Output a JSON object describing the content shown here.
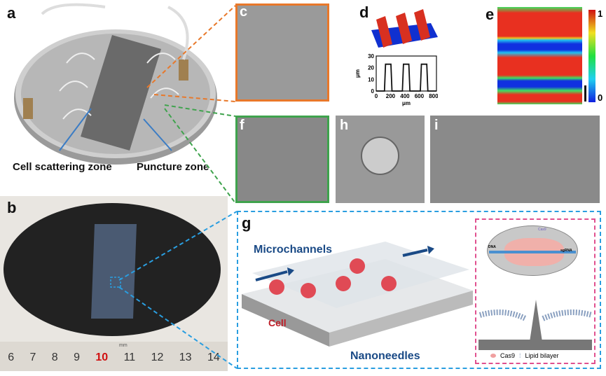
{
  "panels": {
    "a": {
      "label": "a",
      "annotations": [
        "Cell scattering zone",
        "Puncture zone"
      ]
    },
    "b": {
      "label": "b",
      "ruler_numbers": [
        "6",
        "7",
        "8",
        "9",
        "10",
        "11",
        "12",
        "13",
        "14"
      ],
      "ruler_unit": "mm",
      "highlight_number": "10"
    },
    "c": {
      "label": "c"
    },
    "d": {
      "label": "d"
    },
    "e": {
      "label": "e",
      "colorbar_max": "1",
      "colorbar_min": "0"
    },
    "f": {
      "label": "f"
    },
    "h": {
      "label": "h"
    },
    "i": {
      "label": "i"
    },
    "g": {
      "label": "g",
      "microchannels": "Microchannels",
      "cell": "Cell",
      "nanoneedles": "Nanoneedles",
      "inset": {
        "dna": "DNA",
        "cas9_top": "Cas9",
        "sgrna": "sgRNA",
        "legend_cas9": "Cas9",
        "legend_lipid": "Lipid bilayer"
      }
    }
  },
  "colors": {
    "orange": "#e8782a",
    "green": "#3fa34d",
    "blue": "#2a9ee0",
    "pink": "#e0508f",
    "navy": "#1a4a86"
  },
  "chart_data": {
    "type": "line",
    "xlabel": "μm",
    "ylabel": "μm",
    "xlim": [
      0,
      840
    ],
    "ylim": [
      0,
      30
    ],
    "xticks": [
      "0",
      "200",
      "400",
      "600",
      "800"
    ],
    "yticks": [
      "0",
      "10",
      "20",
      "30"
    ],
    "series": [
      {
        "x": [
          0,
          115,
          130,
          205,
          220,
          365,
          380,
          455,
          470,
          615,
          630,
          705,
          720,
          840
        ],
        "y": [
          0,
          0,
          23,
          23,
          0,
          0,
          23,
          23,
          0,
          0,
          23,
          23,
          0,
          0
        ]
      }
    ]
  }
}
